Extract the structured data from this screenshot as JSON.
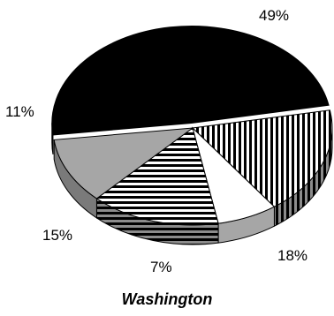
{
  "chart_data": {
    "type": "pie",
    "style": "3d-exploded-tilted",
    "title": "Washington",
    "legend": "none",
    "slices": [
      {
        "label": "49%",
        "value": 49,
        "fill": "solid-black"
      },
      {
        "label": "18%",
        "value": 18,
        "fill": "vertical-stripes"
      },
      {
        "label": "7%",
        "value": 7,
        "fill": "white"
      },
      {
        "label": "15%",
        "value": 15,
        "fill": "horizontal-stripes"
      },
      {
        "label": "11%",
        "value": 11,
        "fill": "solid-gray"
      }
    ]
  },
  "colors": {
    "black": "#000000",
    "gray": "#a6a6a6",
    "dark_gray": "#7a7a7a",
    "white": "#ffffff"
  }
}
